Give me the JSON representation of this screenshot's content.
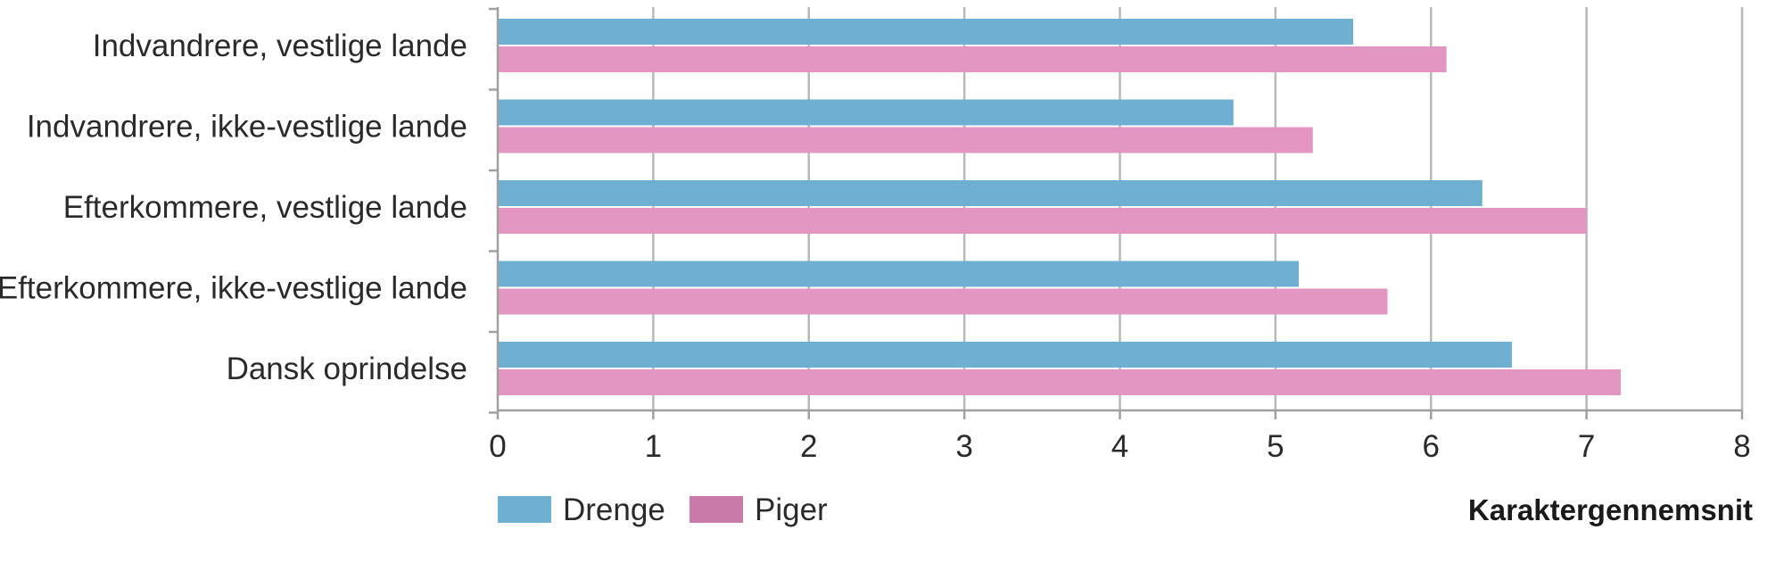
{
  "chart_data": {
    "type": "bar",
    "orientation": "horizontal",
    "categories": [
      "Indvandrere, vestlige lande",
      "Indvandrere, ikke-vestlige lande",
      "Efterkommere, vestlige lande",
      "Efterkommere, ikke-vestlige lande",
      "Dansk oprindelse"
    ],
    "series": [
      {
        "name": "Drenge",
        "color": "#6fb0d2",
        "values": [
          5.5,
          4.73,
          6.33,
          5.15,
          6.52
        ]
      },
      {
        "name": "Piger",
        "color": "#e396c1",
        "values": [
          6.1,
          5.24,
          7.0,
          5.72,
          7.22
        ]
      }
    ],
    "xlabel": "Karaktergennemsnit",
    "xlim": [
      0,
      8
    ],
    "xticks": [
      "0",
      "1",
      "2",
      "3",
      "4",
      "5",
      "6",
      "7",
      "8"
    ],
    "grid": true,
    "legend": {
      "placement": "bottom-left",
      "items": [
        "Drenge",
        "Piger"
      ],
      "swatch_colors": [
        "#6fb0d2",
        "#c97aa8"
      ]
    }
  }
}
